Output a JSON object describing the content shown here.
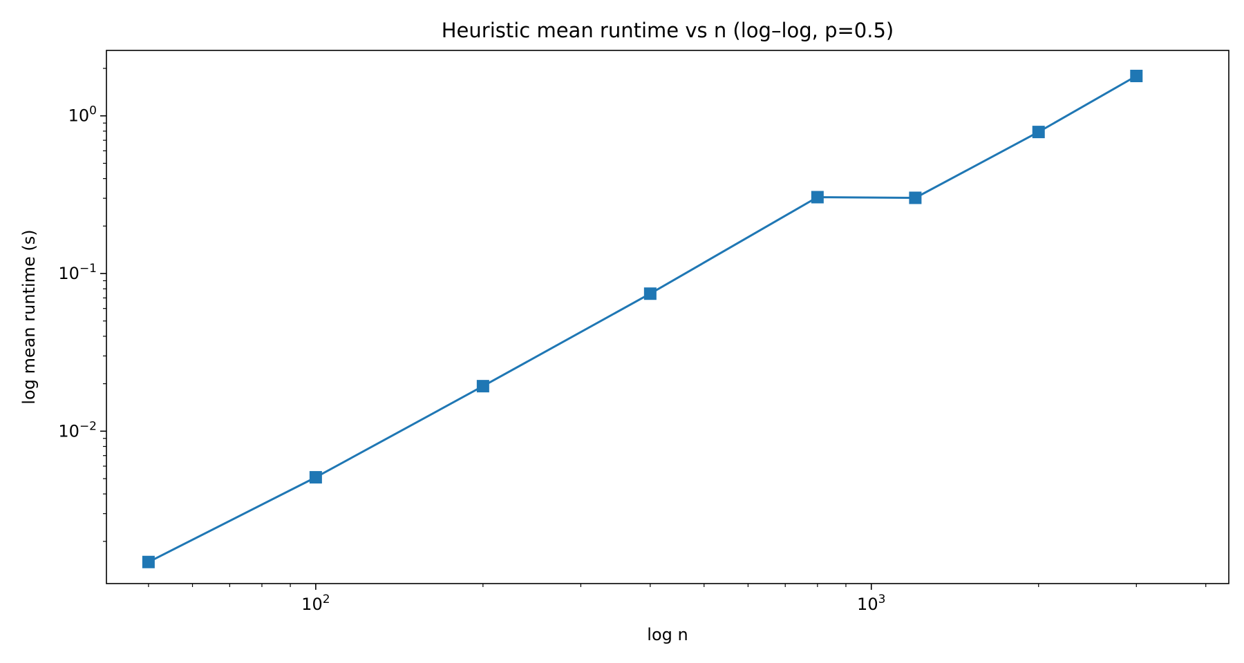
{
  "chart_data": {
    "type": "line",
    "title": "Heuristic mean runtime vs n (log–log, p=0.5)",
    "xlabel": "log n",
    "ylabel": "log mean runtime (s)",
    "xscale": "log",
    "yscale": "log",
    "xlim": [
      42,
      4400
    ],
    "ylim": [
      0.00108,
      2.6
    ],
    "grid": false,
    "legend": "none",
    "color": "#1f77b4",
    "marker": "square",
    "x_ticks": [
      {
        "value": 100,
        "base": "10",
        "exp": "2"
      },
      {
        "value": 1000,
        "base": "10",
        "exp": "3"
      }
    ],
    "y_ticks": [
      {
        "value": 0.01,
        "base": "10",
        "exp": "−2"
      },
      {
        "value": 0.1,
        "base": "10",
        "exp": "−1"
      },
      {
        "value": 1,
        "base": "10",
        "exp": "0"
      }
    ],
    "series": [
      {
        "x": [
          50,
          100,
          200,
          400,
          800,
          1200,
          2000,
          3000
        ],
        "y": [
          0.00148,
          0.0051,
          0.0193,
          0.0745,
          0.305,
          0.302,
          0.79,
          1.79
        ]
      }
    ]
  }
}
